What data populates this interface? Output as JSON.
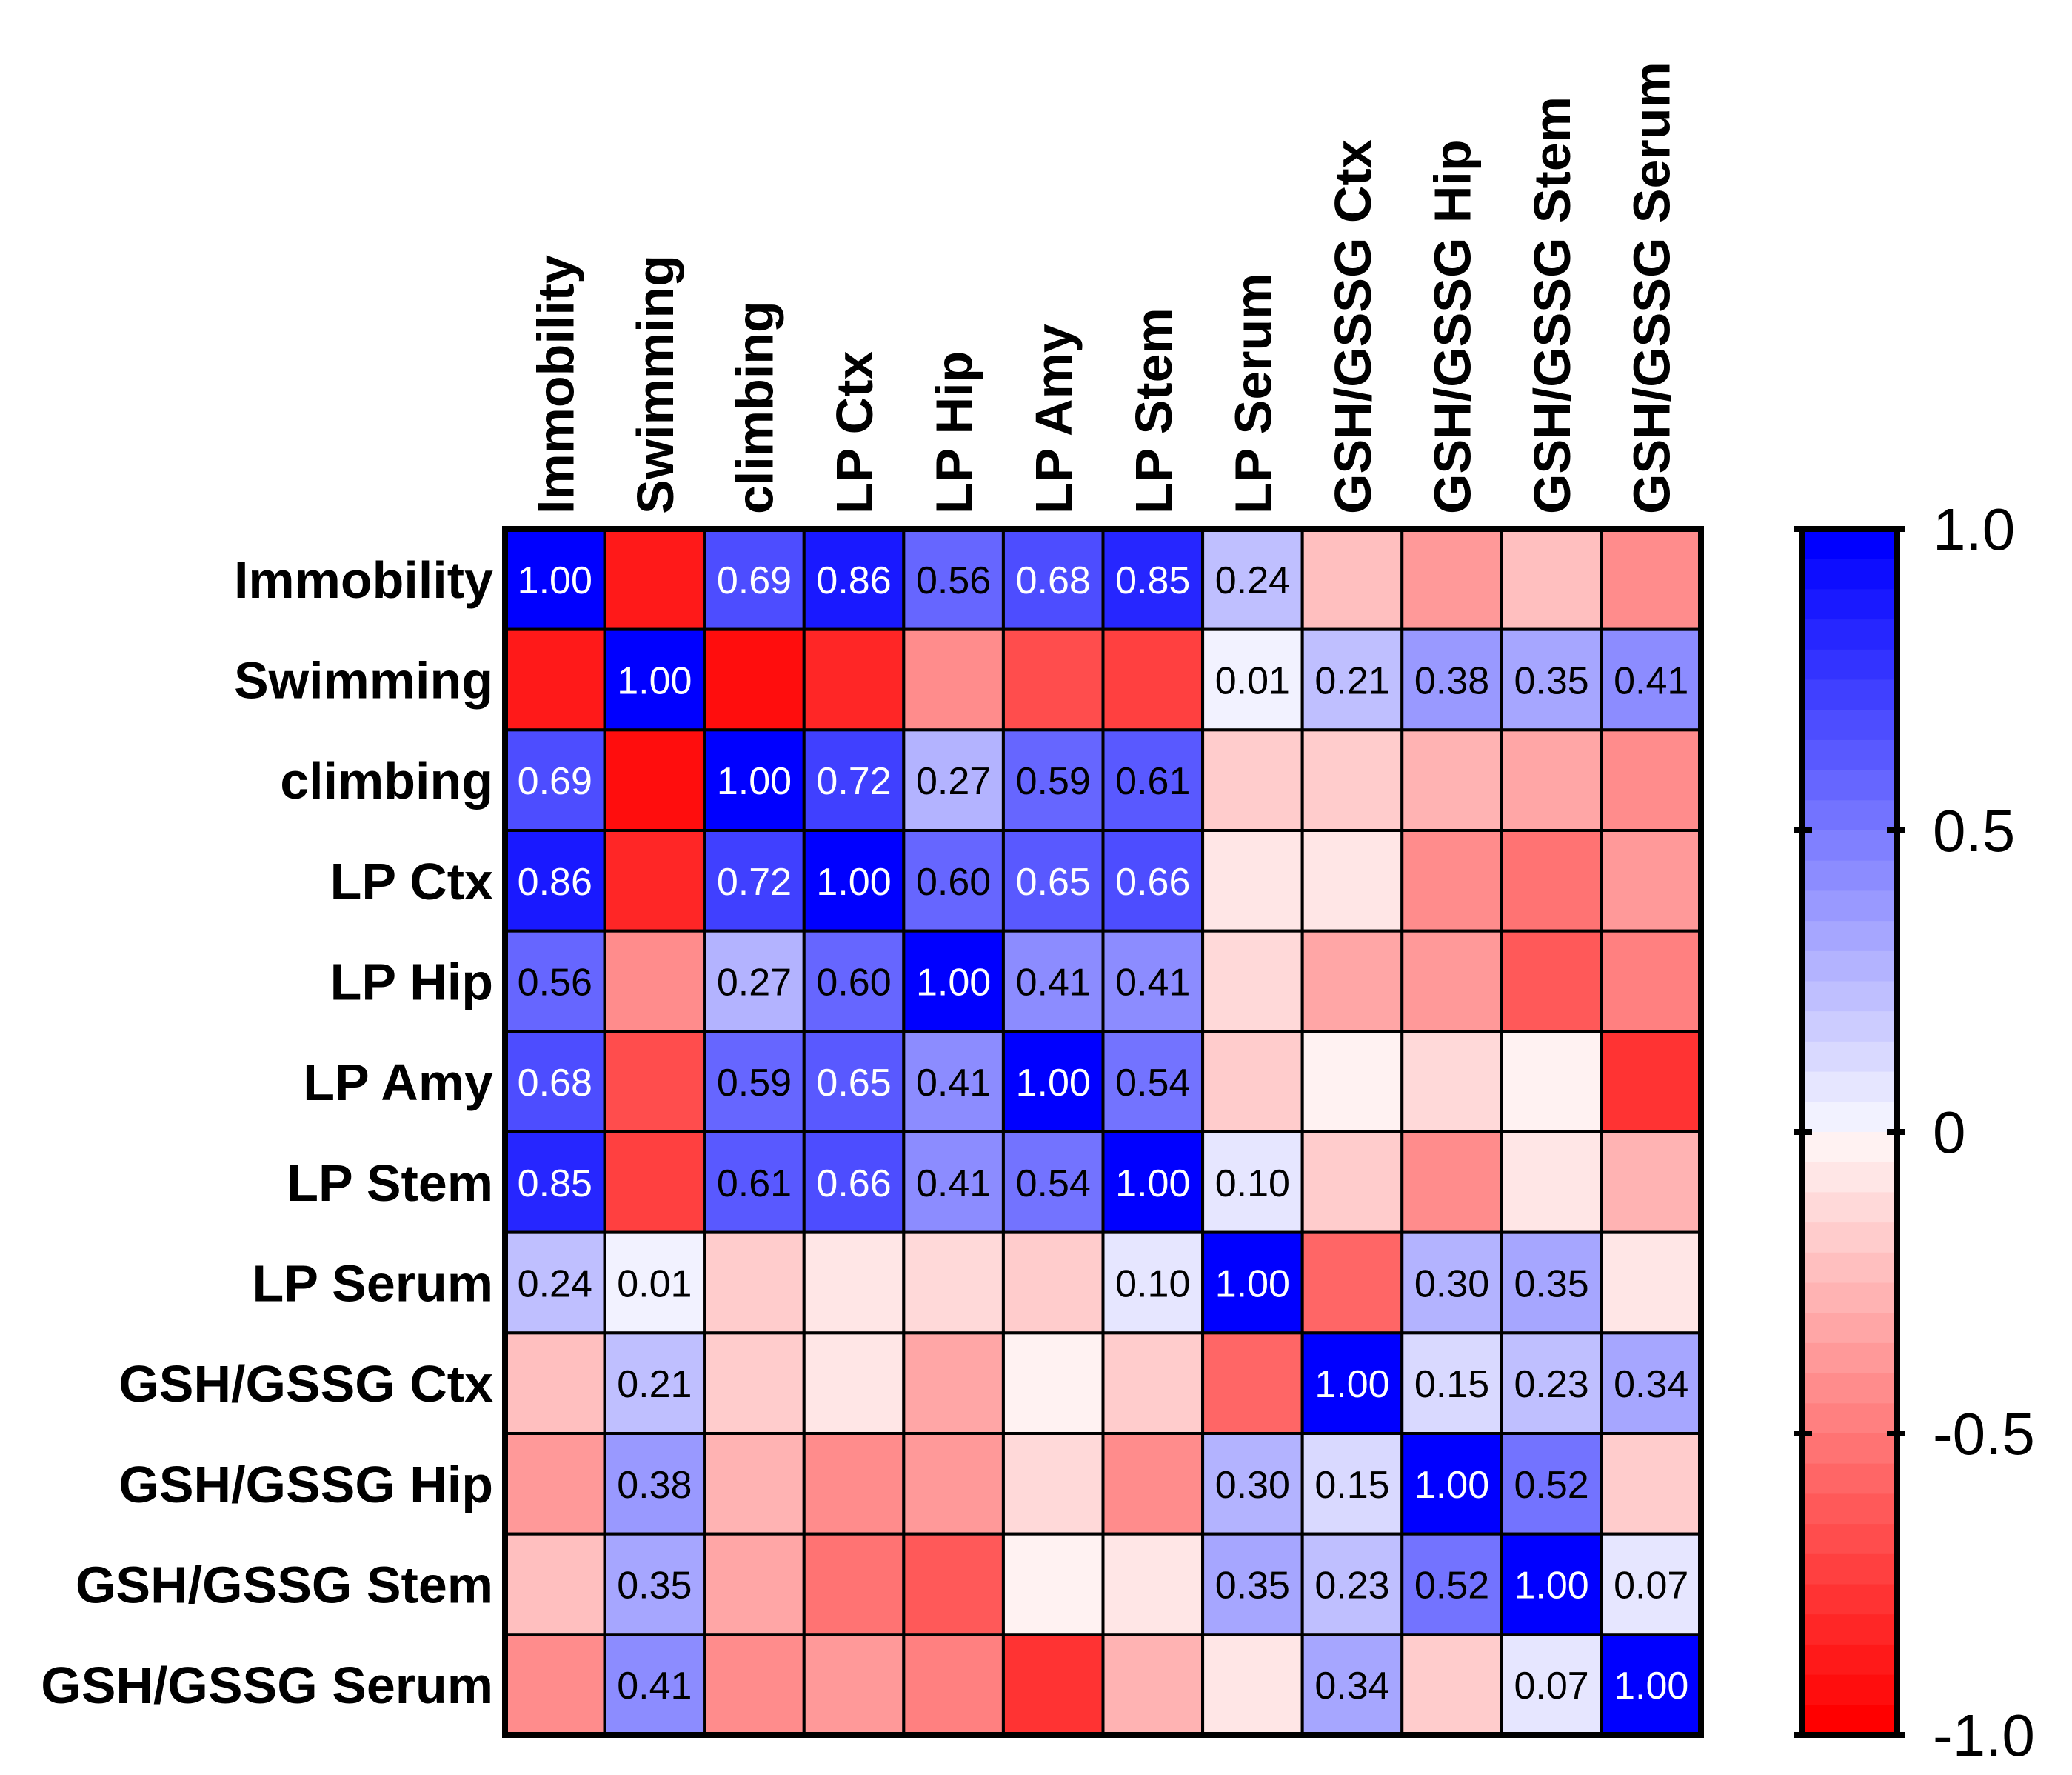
{
  "chart_data": {
    "type": "heatmap",
    "title": "",
    "labels": [
      "Immobility",
      "Swimming",
      "climbing",
      "LP Ctx",
      "LP Hip",
      "LP Amy",
      "LP Stem",
      "LP Serum",
      "GSH/GSSG Ctx",
      "GSH/GSSG Hip",
      "GSH/GSSG Stem",
      "GSH/GSSG Serum"
    ],
    "matrix": [
      [
        1.0,
        -0.9,
        0.69,
        0.86,
        0.56,
        0.68,
        0.85,
        0.24,
        -0.25,
        -0.4,
        -0.25,
        -0.45
      ],
      [
        -0.9,
        1.0,
        -0.95,
        -0.85,
        -0.45,
        -0.7,
        -0.75,
        0.01,
        0.21,
        0.38,
        0.35,
        0.41
      ],
      [
        0.69,
        -0.95,
        1.0,
        0.72,
        0.27,
        0.59,
        0.61,
        -0.18,
        -0.2,
        -0.3,
        -0.35,
        -0.45
      ],
      [
        0.86,
        -0.85,
        0.72,
        1.0,
        0.6,
        0.65,
        0.66,
        -0.08,
        -0.1,
        -0.45,
        -0.55,
        -0.4
      ],
      [
        0.56,
        -0.45,
        0.27,
        0.6,
        1.0,
        0.41,
        0.41,
        -0.12,
        -0.35,
        -0.38,
        -0.65,
        -0.5
      ],
      [
        0.68,
        -0.7,
        0.59,
        0.65,
        0.41,
        1.0,
        0.54,
        -0.17,
        -0.01,
        -0.15,
        -0.05,
        -0.8
      ],
      [
        0.85,
        -0.75,
        0.61,
        0.66,
        0.41,
        0.54,
        1.0,
        0.1,
        -0.2,
        -0.45,
        -0.07,
        -0.28
      ],
      [
        0.24,
        0.01,
        -0.18,
        -0.08,
        -0.12,
        -0.17,
        0.1,
        1.0,
        -0.6,
        0.3,
        0.35,
        -0.1
      ],
      [
        -0.25,
        0.21,
        -0.2,
        -0.1,
        -0.35,
        -0.01,
        -0.2,
        -0.6,
        1.0,
        0.15,
        0.23,
        0.34
      ],
      [
        -0.4,
        0.38,
        -0.3,
        -0.45,
        -0.38,
        -0.15,
        -0.45,
        0.3,
        0.15,
        1.0,
        0.52,
        -0.2
      ],
      [
        -0.25,
        0.35,
        -0.35,
        -0.55,
        -0.65,
        -0.05,
        -0.07,
        0.35,
        0.23,
        0.52,
        1.0,
        0.07
      ],
      [
        -0.45,
        0.41,
        -0.45,
        -0.4,
        -0.5,
        -0.8,
        -0.28,
        -0.1,
        0.34,
        -0.2,
        0.07,
        1.0
      ]
    ],
    "value_labels_shown_for": "non-negative values",
    "colorbar": {
      "range": [
        -1.0,
        1.0
      ],
      "ticks": [
        "1.0",
        "0.5",
        "0",
        "-0.5",
        "-1.0"
      ],
      "tick_values": [
        1.0,
        0.5,
        0,
        -0.5,
        -1.0
      ],
      "steps_per_side": 20,
      "positive_color": "#0000FF",
      "negative_color": "#FF0000",
      "zero_color": "#FFFFFF"
    }
  }
}
